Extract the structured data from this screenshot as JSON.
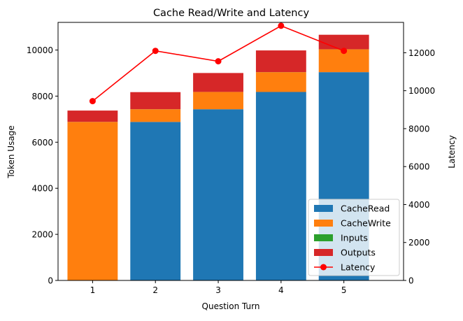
{
  "chart_data": {
    "type": "bar",
    "title": "Cache Read/Write and Latency",
    "xlabel": "Question Turn",
    "ylabel": "Token Usage",
    "y2label": "Latency",
    "categories": [
      "1",
      "2",
      "3",
      "4",
      "5"
    ],
    "ylim": [
      0,
      11200
    ],
    "y2lim": [
      0,
      13600
    ],
    "yticks": [
      0,
      2000,
      4000,
      6000,
      8000,
      10000
    ],
    "y2ticks": [
      0,
      2000,
      4000,
      6000,
      8000,
      10000,
      12000
    ],
    "series": [
      {
        "name": "CacheRead",
        "type": "bar",
        "stack": "tokens",
        "color": "#1f77b4",
        "values": [
          0,
          6880,
          7430,
          8180,
          9040
        ]
      },
      {
        "name": "CacheWrite",
        "type": "bar",
        "stack": "tokens",
        "color": "#ff7f0e",
        "values": [
          6880,
          550,
          750,
          860,
          990
        ]
      },
      {
        "name": "Inputs",
        "type": "bar",
        "stack": "tokens",
        "color": "#2ca02c",
        "values": [
          3,
          3,
          3,
          3,
          3
        ]
      },
      {
        "name": "Outputs",
        "type": "bar",
        "stack": "tokens",
        "color": "#d62728",
        "values": [
          490,
          740,
          820,
          940,
          630
        ]
      },
      {
        "name": "Latency",
        "type": "line",
        "axis": "right",
        "color": "#ff0000",
        "values": [
          9450,
          12100,
          11550,
          13420,
          12100
        ]
      }
    ],
    "grid": false,
    "legend_position": "lower-right"
  }
}
